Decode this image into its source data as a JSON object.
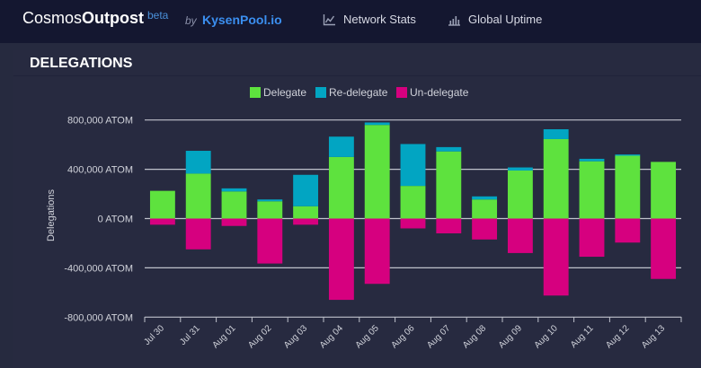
{
  "header": {
    "brand_light": "Cosmos",
    "brand_bold": "Outpost",
    "beta": "beta",
    "by": "by",
    "pool": "KysenPool.io",
    "nav": [
      {
        "label": "Network Stats",
        "icon": "line-chart-icon"
      },
      {
        "label": "Global Uptime",
        "icon": "bar-chart-icon"
      }
    ]
  },
  "section_title": "DELEGATIONS",
  "colors": {
    "delegate": "#5ee23e",
    "redelegate": "#02a5c2",
    "undelegate": "#d6007f",
    "grid": "#bfc2cc",
    "tick_label": "#d0d2da"
  },
  "chart_data": {
    "type": "bar",
    "stacked": true,
    "ylabel": "Delegations",
    "ylim": [
      -800000,
      800000
    ],
    "yticks": [
      800000,
      400000,
      0,
      -400000,
      -800000
    ],
    "ytick_labels": [
      "800,000 ATOM",
      "400,000 ATOM",
      "0 ATOM",
      "-400,000 ATOM",
      "-800,000 ATOM"
    ],
    "categories": [
      "Jul 30",
      "Jul 31",
      "Aug 01",
      "Aug 02",
      "Aug 03",
      "Aug 04",
      "Aug 05",
      "Aug 06",
      "Aug 07",
      "Aug 08",
      "Aug 09",
      "Aug 10",
      "Aug 11",
      "Aug 12",
      "Aug 13"
    ],
    "series": [
      {
        "name": "Delegate",
        "values": [
          225000,
          365000,
          220000,
          140000,
          100000,
          500000,
          760000,
          265000,
          545000,
          155000,
          390000,
          645000,
          465000,
          510000,
          460000
        ]
      },
      {
        "name": "Re-delegate",
        "values": [
          0,
          185000,
          25000,
          15000,
          255000,
          165000,
          20000,
          340000,
          35000,
          25000,
          25000,
          80000,
          20000,
          10000,
          0
        ]
      },
      {
        "name": "Un-delegate",
        "values": [
          -50000,
          -250000,
          -60000,
          -365000,
          -50000,
          -660000,
          -530000,
          -80000,
          -120000,
          -170000,
          -280000,
          -625000,
          -310000,
          -195000,
          -490000
        ]
      }
    ],
    "legend_position": "top-center"
  }
}
